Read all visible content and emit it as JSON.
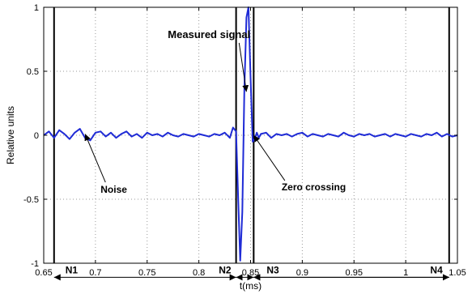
{
  "chart_data": {
    "type": "line",
    "title": "",
    "xlabel": "t(ms)",
    "ylabel": "Relative units",
    "xlim": [
      0.65,
      1.05
    ],
    "ylim": [
      -1,
      1
    ],
    "xticks": [
      0.65,
      0.7,
      0.75,
      0.8,
      0.85,
      0.9,
      0.95,
      1,
      1.05
    ],
    "xtick_labels": [
      "0.65",
      "0.7",
      "0.75",
      "0.8",
      "0.85",
      "0.9",
      "0.95",
      "1",
      "1.05"
    ],
    "yticks": [
      -1,
      -0.5,
      0,
      0.5,
      1
    ],
    "ytick_labels": [
      "-1",
      "-0.5",
      "0",
      "0.5",
      "1"
    ],
    "grid": true,
    "series": [
      {
        "color": "#1f2bd6",
        "x": [
          0.65,
          0.655,
          0.66,
          0.665,
          0.67,
          0.675,
          0.68,
          0.685,
          0.69,
          0.695,
          0.7,
          0.705,
          0.71,
          0.715,
          0.72,
          0.725,
          0.73,
          0.735,
          0.74,
          0.745,
          0.75,
          0.755,
          0.76,
          0.765,
          0.77,
          0.775,
          0.78,
          0.785,
          0.79,
          0.795,
          0.8,
          0.805,
          0.81,
          0.815,
          0.82,
          0.825,
          0.83,
          0.833,
          0.836,
          0.838,
          0.84,
          0.842,
          0.844,
          0.846,
          0.848,
          0.85,
          0.852,
          0.854,
          0.856,
          0.858,
          0.86,
          0.865,
          0.87,
          0.875,
          0.88,
          0.885,
          0.89,
          0.895,
          0.9,
          0.905,
          0.91,
          0.915,
          0.92,
          0.925,
          0.93,
          0.935,
          0.94,
          0.945,
          0.95,
          0.955,
          0.96,
          0.965,
          0.97,
          0.975,
          0.98,
          0.985,
          0.99,
          0.995,
          1,
          1.005,
          1.01,
          1.015,
          1.02,
          1.025,
          1.03,
          1.035,
          1.04,
          1.045,
          1.05
        ],
        "y": [
          0.0,
          0.03,
          -0.02,
          0.04,
          0.01,
          -0.03,
          0.02,
          0.05,
          -0.02,
          -0.04,
          0.02,
          0.03,
          -0.01,
          0.02,
          -0.02,
          0.01,
          0.03,
          -0.01,
          0.01,
          -0.02,
          0.02,
          0.0,
          0.01,
          -0.01,
          0.02,
          0.0,
          -0.01,
          0.01,
          0.0,
          -0.01,
          0.01,
          0.0,
          -0.01,
          0.01,
          0.0,
          0.02,
          -0.02,
          0.06,
          0.03,
          -0.5,
          -0.98,
          -0.6,
          0.35,
          0.92,
          1.0,
          0.45,
          -0.05,
          -0.03,
          0.02,
          -0.02,
          0.01,
          0.02,
          -0.02,
          0.01,
          0.0,
          0.01,
          -0.01,
          0.01,
          0.02,
          -0.01,
          0.01,
          0.0,
          -0.01,
          0.01,
          0.0,
          -0.01,
          0.02,
          0.0,
          -0.01,
          0.01,
          0.0,
          0.01,
          -0.01,
          0.0,
          0.01,
          -0.01,
          0.01,
          0.0,
          -0.01,
          0.01,
          0.0,
          -0.01,
          0.01,
          0.0,
          0.02,
          -0.01,
          0.01,
          -0.01,
          0.0
        ]
      }
    ],
    "vertical_lines": [
      0.66,
      0.836,
      0.853,
      1.042
    ],
    "intervals": [
      {
        "label": "N1",
        "from": 0.66,
        "to": 0.836
      },
      {
        "label": "N2",
        "from": 0.836,
        "to": 0.853
      },
      {
        "label": "N3",
        "from": 0.853,
        "to": 1.042
      },
      {
        "label": "N4",
        "from": 0.853,
        "to": 1.042
      }
    ],
    "interval_y": -1.11,
    "annotations": [
      {
        "text": "Measured signal",
        "x": 0.77,
        "y": 0.76,
        "arrow_to": [
          0.846,
          0.34
        ]
      },
      {
        "text": "Noise",
        "x": 0.705,
        "y": -0.45,
        "arrow_to": [
          0.69,
          0.01
        ]
      },
      {
        "text": "Zero crossing",
        "x": 0.88,
        "y": -0.43,
        "arrow_to": [
          0.853,
          0.0
        ]
      }
    ]
  }
}
